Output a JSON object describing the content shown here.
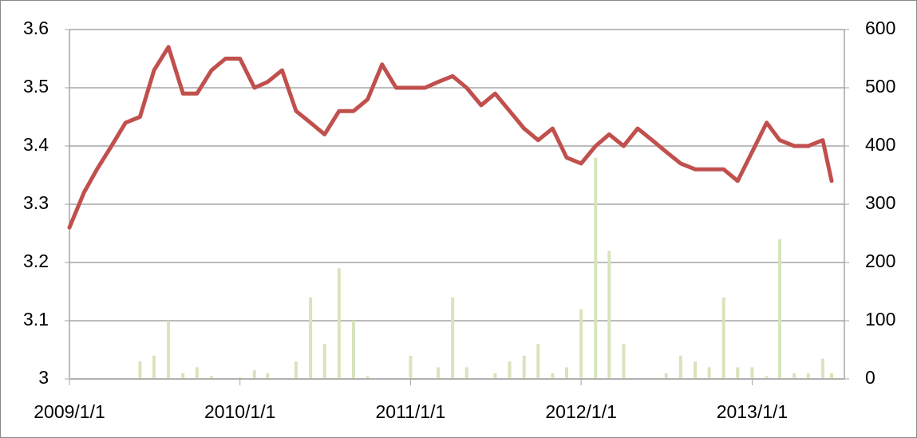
{
  "chart_data": {
    "type": "line-bar",
    "x": [
      "2009/1/1",
      "2009/2/1",
      "2009/3/1",
      "2009/4/1",
      "2009/5/1",
      "2009/6/1",
      "2009/7/1",
      "2009/8/1",
      "2009/9/1",
      "2009/10/1",
      "2009/11/1",
      "2009/12/1",
      "2010/1/1",
      "2010/2/1",
      "2010/3/1",
      "2010/4/1",
      "2010/5/1",
      "2010/6/1",
      "2010/7/1",
      "2010/8/1",
      "2010/9/1",
      "2010/10/1",
      "2010/11/1",
      "2010/12/1",
      "2011/1/1",
      "2011/2/1",
      "2011/3/1",
      "2011/4/1",
      "2011/5/1",
      "2011/6/1",
      "2011/7/1",
      "2011/8/1",
      "2011/9/1",
      "2011/10/1",
      "2011/11/1",
      "2011/12/1",
      "2012/1/1",
      "2012/2/1",
      "2012/3/1",
      "2012/4/1",
      "2012/5/1",
      "2012/6/1",
      "2012/7/1",
      "2012/8/1",
      "2012/9/1",
      "2012/10/1",
      "2012/11/1",
      "2012/12/1",
      "2013/1/1",
      "2013/2/1",
      "2013/3/1",
      "2013/4/1",
      "2013/5/1",
      "2013/6/1",
      "2013/6/20"
    ],
    "series": [
      {
        "kind": "bar",
        "axis": "y2",
        "color": "#d8e4bc",
        "values": [
          2,
          0,
          0,
          0,
          0,
          30,
          40,
          100,
          10,
          20,
          5,
          0,
          3,
          15,
          10,
          0,
          30,
          140,
          60,
          190,
          100,
          5,
          0,
          0,
          40,
          0,
          20,
          140,
          20,
          0,
          10,
          30,
          40,
          60,
          10,
          20,
          120,
          380,
          220,
          60,
          0,
          0,
          10,
          40,
          30,
          20,
          140,
          20,
          20,
          5,
          240,
          10,
          10,
          35,
          10
        ]
      },
      {
        "kind": "line",
        "axis": "y",
        "color": "#c0504d",
        "values": [
          3.26,
          3.32,
          3.36,
          3.4,
          3.44,
          3.45,
          3.53,
          3.57,
          3.49,
          3.49,
          3.53,
          3.55,
          3.55,
          3.5,
          3.51,
          3.53,
          3.46,
          3.44,
          3.42,
          3.46,
          3.46,
          3.48,
          3.54,
          3.5,
          3.5,
          3.5,
          3.51,
          3.52,
          3.5,
          3.47,
          3.49,
          3.46,
          3.43,
          3.41,
          3.43,
          3.38,
          3.37,
          3.4,
          3.42,
          3.4,
          3.43,
          3.41,
          3.39,
          3.37,
          3.36,
          3.36,
          3.36,
          3.34,
          3.39,
          3.44,
          3.41,
          3.4,
          3.4,
          3.41,
          3.34
        ]
      }
    ],
    "xlim": [
      "2009/1/1",
      "2013/6/20"
    ],
    "xticks": [
      "2009/1/1",
      "2010/1/1",
      "2011/1/1",
      "2012/1/1",
      "2013/1/1"
    ],
    "ylim": [
      3,
      3.6
    ],
    "yticks": [
      3,
      3.1,
      3.2,
      3.3,
      3.4,
      3.5,
      3.6
    ],
    "y2lim": [
      0,
      600
    ],
    "y2ticks": [
      0,
      100,
      200,
      300,
      400,
      500,
      600
    ],
    "grid": true
  }
}
